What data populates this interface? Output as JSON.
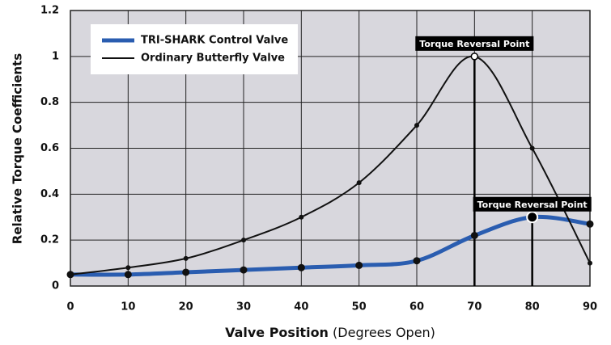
{
  "chart_data": {
    "type": "line",
    "x_label": "Valve Position",
    "x_label_note": "(Degrees Open)",
    "y_label": "Relative Torque Coefficients",
    "x": [
      0,
      10,
      20,
      30,
      40,
      50,
      60,
      70,
      80,
      90
    ],
    "series": [
      {
        "name": "TRI-SHARK Control Valve",
        "color": "#2a5db0",
        "values": [
          0.05,
          0.05,
          0.06,
          0.07,
          0.08,
          0.09,
          0.11,
          0.22,
          0.3,
          0.27
        ]
      },
      {
        "name": "Ordinary Butterfly Valve",
        "color": "#111111",
        "values": [
          0.05,
          0.08,
          0.12,
          0.2,
          0.3,
          0.45,
          0.7,
          1.0,
          0.6,
          0.1
        ]
      }
    ],
    "annotations": [
      {
        "text": "Torque Reversal Point",
        "x": 70,
        "y": 1.0
      },
      {
        "text": "Torque Reversal Point",
        "x": 80,
        "y": 0.3
      }
    ],
    "xlim": [
      0,
      90
    ],
    "xticks": [
      0,
      10,
      20,
      30,
      40,
      50,
      60,
      70,
      80,
      90
    ],
    "ylim": [
      0,
      1.2
    ],
    "yticks": [
      0,
      0.2,
      0.4,
      0.6,
      0.8,
      1,
      1.2
    ],
    "grid": true,
    "legend": "upper left"
  }
}
